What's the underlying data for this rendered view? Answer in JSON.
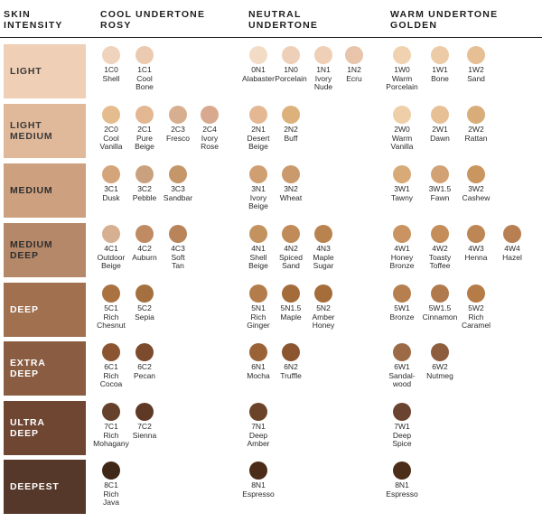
{
  "headers": {
    "skin": "SKIN\nINTENSITY",
    "cool": "COOL UNDERTONE\nROSY",
    "neutral": "NEUTRAL\nUNDERTONE",
    "warm": "WARM UNDERTONE\nGOLDEN"
  },
  "rows": [
    {
      "label": "LIGHT",
      "band_color": "#efcfb6",
      "text_color": "#3a3a3a",
      "cool": [
        {
          "code": "1C0",
          "name": "Shell",
          "color": "#efd3bd"
        },
        {
          "code": "1C1",
          "name": "Cool\nBone",
          "color": "#eccab0"
        }
      ],
      "neutral": [
        {
          "code": "0N1",
          "name": "Alabaster",
          "color": "#f3dcc6"
        },
        {
          "code": "1N0",
          "name": "Porcelain",
          "color": "#eecfb8"
        },
        {
          "code": "1N1",
          "name": "Ivory\nNude",
          "color": "#efcfb5"
        },
        {
          "code": "1N2",
          "name": "Ecru",
          "color": "#e8c4ab"
        }
      ],
      "warm": [
        {
          "code": "1W0",
          "name": "Warm\nPorcelain",
          "color": "#f0d2b0"
        },
        {
          "code": "1W1",
          "name": "Bone",
          "color": "#eccba6"
        },
        {
          "code": "1W2",
          "name": "Sand",
          "color": "#e6c094"
        }
      ]
    },
    {
      "label": "LIGHT\nMEDIUM",
      "band_color": "#e0b89a",
      "text_color": "#3a3a3a",
      "cool": [
        {
          "code": "2C0",
          "name": "Cool\nVanilla",
          "color": "#e5bc8e"
        },
        {
          "code": "2C1",
          "name": "Pure\nBeige",
          "color": "#e2b792"
        },
        {
          "code": "2C3",
          "name": "Fresco",
          "color": "#d7ae90"
        },
        {
          "code": "2C4",
          "name": "Ivory\nRose",
          "color": "#d9a98f"
        }
      ],
      "neutral": [
        {
          "code": "2N1",
          "name": "Desert\nBeige",
          "color": "#e3b893"
        },
        {
          "code": "2N2",
          "name": "Buff",
          "color": "#dcb17c"
        }
      ],
      "warm": [
        {
          "code": "2W0",
          "name": "Warm\nVanilla",
          "color": "#efcfa8"
        },
        {
          "code": "2W1",
          "name": "Dawn",
          "color": "#e8c095"
        },
        {
          "code": "2W2",
          "name": "Rattan",
          "color": "#d9ad7a"
        }
      ]
    },
    {
      "label": "MEDIUM",
      "band_color": "#cda080",
      "text_color": "#2e2e2e",
      "cool": [
        {
          "code": "3C1",
          "name": "Dusk",
          "color": "#d4a47b"
        },
        {
          "code": "3C2",
          "name": "Pebble",
          "color": "#caa17e"
        },
        {
          "code": "3C3",
          "name": "Sandbar",
          "color": "#c49669"
        }
      ],
      "neutral": [
        {
          "code": "3N1",
          "name": "Ivory\nBeige",
          "color": "#cf9f72"
        },
        {
          "code": "3N2",
          "name": "Wheat",
          "color": "#cb9a6c"
        }
      ],
      "warm": [
        {
          "code": "3W1",
          "name": "Tawny",
          "color": "#d8aa78"
        },
        {
          "code": "3W1.5",
          "name": "Fawn",
          "color": "#d2a274"
        },
        {
          "code": "3W2",
          "name": "Cashew",
          "color": "#c99660"
        }
      ]
    },
    {
      "label": "MEDIUM\nDEEP",
      "band_color": "#b58869",
      "text_color": "#2e2e2e",
      "cool": [
        {
          "code": "4C1",
          "name": "Outdoor\nBeige",
          "color": "#d7b092"
        },
        {
          "code": "4C2",
          "name": "Auburn",
          "color": "#c08b62"
        },
        {
          "code": "4C3",
          "name": "Soft\nTan",
          "color": "#b98459"
        }
      ],
      "neutral": [
        {
          "code": "4N1",
          "name": "Shell\nBeige",
          "color": "#c3925f"
        },
        {
          "code": "4N2",
          "name": "Spiced\nSand",
          "color": "#c08b58"
        },
        {
          "code": "4N3",
          "name": "Maple\nSugar",
          "color": "#b9834f"
        }
      ],
      "warm": [
        {
          "code": "4W1",
          "name": "Honey\nBronze",
          "color": "#c99461"
        },
        {
          "code": "4W2",
          "name": "Toasty\nToffee",
          "color": "#c48d5a"
        },
        {
          "code": "4W3",
          "name": "Henna",
          "color": "#bd8654"
        },
        {
          "code": "4W4",
          "name": "Hazel",
          "color": "#b88052"
        }
      ]
    },
    {
      "label": "DEEP",
      "band_color": "#a0704f",
      "text_color": "#ffffff",
      "cool": [
        {
          "code": "5C1",
          "name": "Rich\nChesnut",
          "color": "#aa7241"
        },
        {
          "code": "5C2",
          "name": "Sepia",
          "color": "#a4703f"
        }
      ],
      "neutral": [
        {
          "code": "5N1",
          "name": "Rich\nGinger",
          "color": "#b37d4b"
        },
        {
          "code": "5N1.5",
          "name": "Maple",
          "color": "#a46c3b"
        },
        {
          "code": "5N2",
          "name": "Amber\nHoney",
          "color": "#a56d3a"
        }
      ],
      "warm": [
        {
          "code": "5W1",
          "name": "Bronze",
          "color": "#b67f4f"
        },
        {
          "code": "5W1.5",
          "name": "Cinnamon",
          "color": "#b07a4d"
        },
        {
          "code": "5W2",
          "name": "Rich\nCaramel",
          "color": "#b57c48"
        }
      ]
    },
    {
      "label": "EXTRA\nDEEP",
      "band_color": "#8a5c42",
      "text_color": "#ffffff",
      "cool": [
        {
          "code": "6C1",
          "name": "Rich\nCocoa",
          "color": "#8a5530"
        },
        {
          "code": "6C2",
          "name": "Pecan",
          "color": "#7c4a2c"
        }
      ],
      "neutral": [
        {
          "code": "6N1",
          "name": "Mocha",
          "color": "#9a6237"
        },
        {
          "code": "6N2",
          "name": "Truffle",
          "color": "#8a552f"
        }
      ],
      "warm": [
        {
          "code": "6W1",
          "name": "Sandal-\nwood",
          "color": "#9d6a46"
        },
        {
          "code": "6W2",
          "name": "Nutmeg",
          "color": "#8e5d3e"
        }
      ]
    },
    {
      "label": "ULTRA\nDEEP",
      "band_color": "#6e4632",
      "text_color": "#ffffff",
      "cool": [
        {
          "code": "7C1",
          "name": "Rich\nMohagany",
          "color": "#65402a"
        },
        {
          "code": "7C2",
          "name": "Sienna",
          "color": "#5e3a26"
        }
      ],
      "neutral": [
        {
          "code": "7N1",
          "name": "Deep\nAmber",
          "color": "#6b4329"
        }
      ],
      "warm": [
        {
          "code": "7W1",
          "name": "Deep\nSpice",
          "color": "#6a4430"
        }
      ]
    },
    {
      "label": "DEEPEST",
      "band_color": "#56382a",
      "text_color": "#ffffff",
      "cool": [
        {
          "code": "8C1",
          "name": "Rich\nJava",
          "color": "#3f2818"
        }
      ],
      "neutral": [
        {
          "code": "8N1",
          "name": "Espresso",
          "color": "#4a2c18"
        }
      ],
      "warm": [
        {
          "code": "8N1",
          "name": "Espresso",
          "color": "#4c2d1a"
        }
      ]
    }
  ]
}
